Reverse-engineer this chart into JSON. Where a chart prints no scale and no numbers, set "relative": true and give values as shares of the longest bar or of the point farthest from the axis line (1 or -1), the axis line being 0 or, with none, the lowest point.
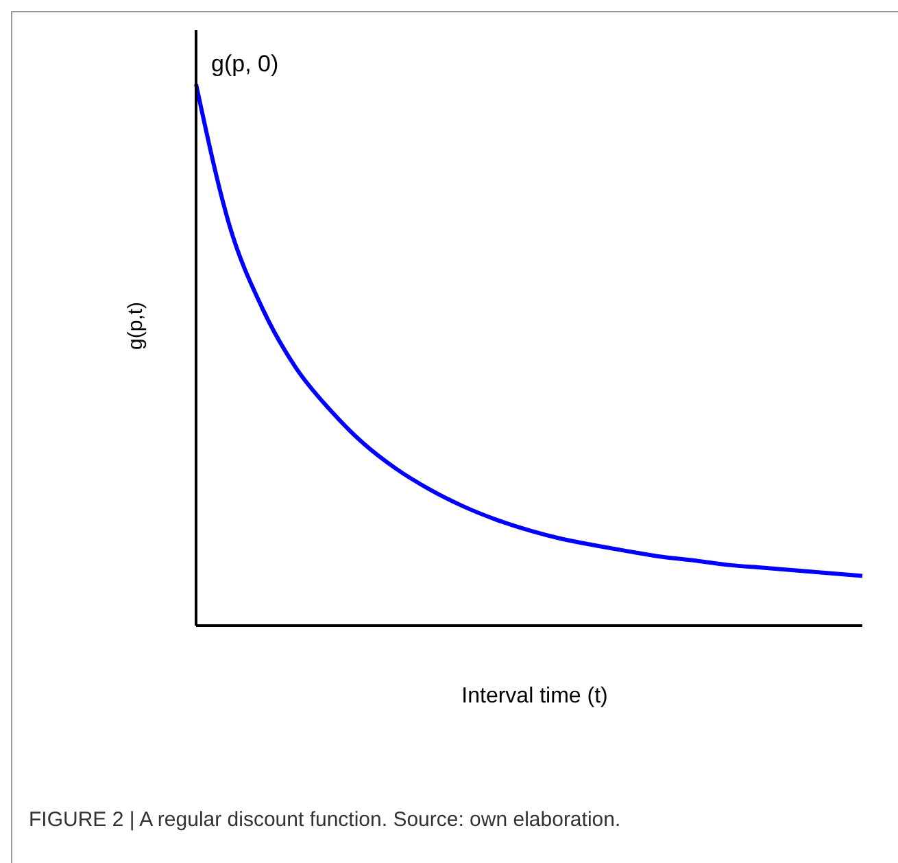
{
  "chart_data": {
    "type": "line",
    "relative": true,
    "xlabel": "Interval time (t)",
    "ylabel": "g(p,t)",
    "annotations": [
      "g(p, 0)",
      "FIGURE 2 | A regular discount function. Source: own elaboration."
    ],
    "categories": [
      null,
      null,
      null,
      null,
      null,
      null,
      null,
      null,
      null,
      null,
      null,
      null,
      null,
      null,
      null,
      null,
      null,
      null,
      null,
      null,
      null
    ],
    "series": [
      {
        "color": "#0000ff",
        "values": [
          1.0,
          0.74,
          0.585,
          0.476,
          0.4,
          0.338,
          0.29,
          0.252,
          0.221,
          0.196,
          0.176,
          0.16,
          0.148,
          0.137,
          0.127,
          0.12,
          0.112,
          0.107,
          0.102,
          0.097,
          0.092
        ]
      }
    ],
    "grid": false,
    "legend": false,
    "marker": "none",
    "line_style": "solid"
  }
}
